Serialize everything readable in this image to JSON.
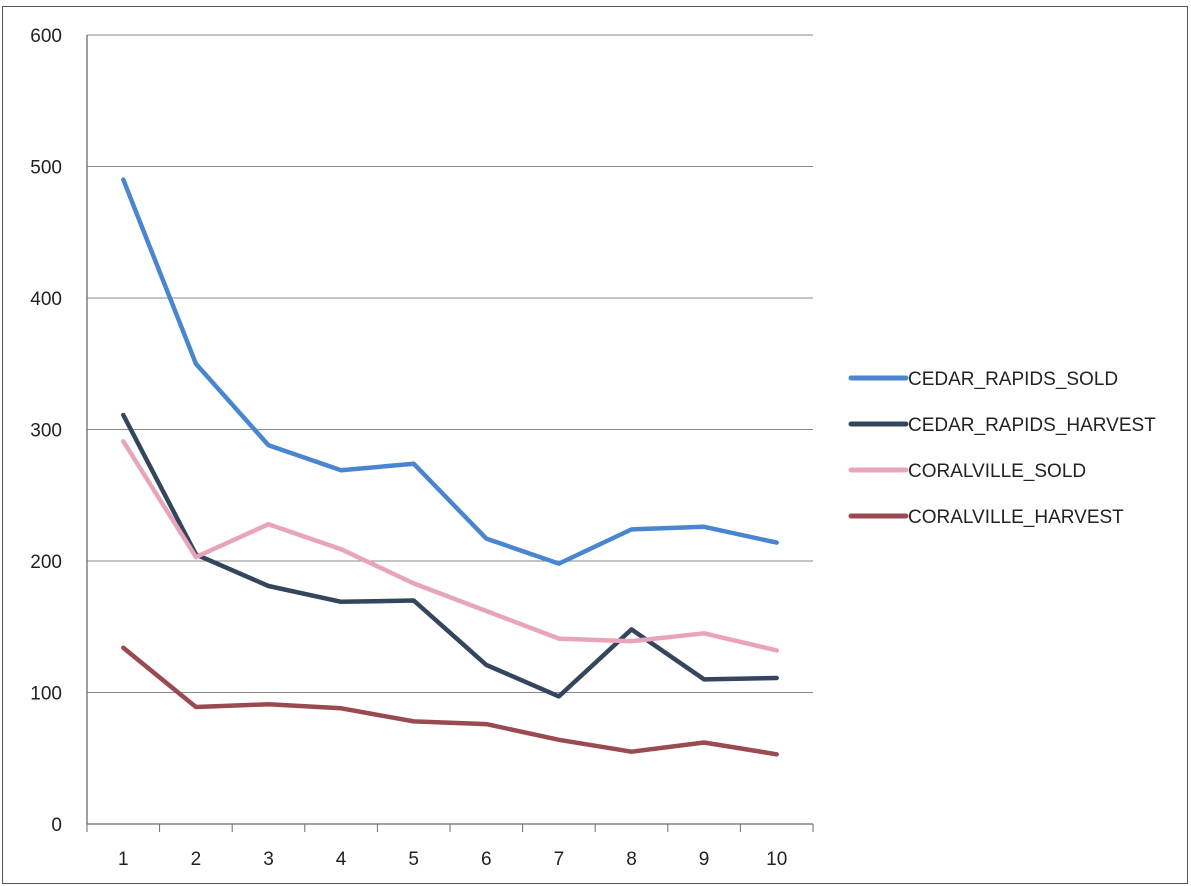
{
  "chart_data": {
    "type": "line",
    "title": "",
    "xlabel": "",
    "ylabel": "",
    "x": [
      1,
      2,
      3,
      4,
      5,
      6,
      7,
      8,
      9,
      10
    ],
    "x_tick_labels": [
      "1",
      "2",
      "3",
      "4",
      "5",
      "6",
      "7",
      "8",
      "9",
      "10"
    ],
    "y_ticks": [
      0,
      100,
      200,
      300,
      400,
      500,
      600
    ],
    "y_tick_labels": [
      "0",
      "100",
      "200",
      "300",
      "400",
      "500",
      "600"
    ],
    "ylim": [
      0,
      600
    ],
    "grid": "horizontal",
    "legend_position": "right",
    "series": [
      {
        "name": "CEDAR_RAPIDS_SOLD",
        "color": "#4a86d0",
        "values": [
          490,
          350,
          288,
          269,
          274,
          217,
          198,
          224,
          226,
          214
        ]
      },
      {
        "name": "CEDAR_RAPIDS_HARVEST",
        "color": "#34465e",
        "values": [
          311,
          205,
          181,
          169,
          170,
          121,
          97,
          148,
          110,
          111
        ]
      },
      {
        "name": "CORALVILLE_SOLD",
        "color": "#e8a5b9",
        "values": [
          291,
          203,
          228,
          209,
          183,
          162,
          141,
          139,
          145,
          132
        ]
      },
      {
        "name": "CORALVILLE_HARVEST",
        "color": "#9a4a51",
        "values": [
          134,
          89,
          91,
          88,
          78,
          76,
          64,
          55,
          62,
          53
        ]
      }
    ]
  }
}
